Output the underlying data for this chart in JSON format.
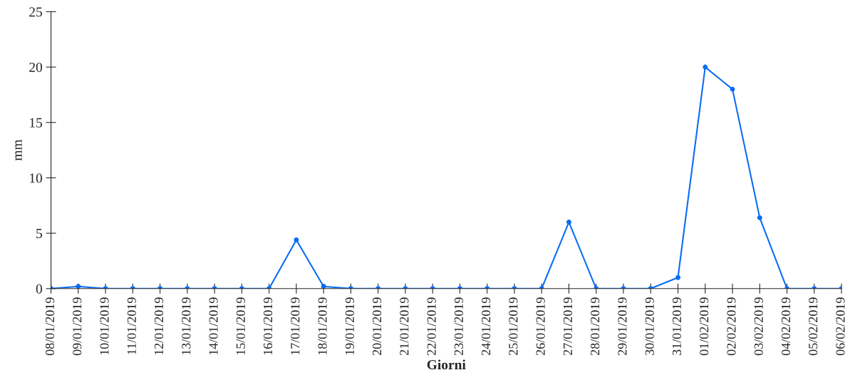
{
  "chart_data": {
    "type": "line",
    "xlabel": "Giorni",
    "ylabel": "mm",
    "categories": [
      "08/01/2019",
      "09/01/2019",
      "10/01/2019",
      "11/01/2019",
      "12/01/2019",
      "13/01/2019",
      "14/01/2019",
      "15/01/2019",
      "16/01/2019",
      "17/01/2019",
      "18/01/2019",
      "19/01/2019",
      "20/01/2019",
      "21/01/2019",
      "22/01/2019",
      "23/01/2019",
      "24/01/2019",
      "25/01/2019",
      "26/01/2019",
      "27/01/2019",
      "28/01/2019",
      "29/01/2019",
      "30/01/2019",
      "31/01/2019",
      "01/02/2019",
      "02/02/2019",
      "03/02/2019",
      "04/02/2019",
      "05/02/2019",
      "06/02/2019"
    ],
    "series": [
      {
        "color": "#0a6cf5",
        "values": [
          0,
          0.2,
          0,
          0,
          0,
          0,
          0,
          0,
          0,
          4.4,
          0.2,
          0,
          0,
          0,
          0,
          0,
          0,
          0,
          0,
          6.0,
          0,
          0,
          0,
          1.0,
          20,
          18,
          6.4,
          0,
          0,
          0
        ]
      }
    ],
    "ylim": [
      0,
      25
    ],
    "yticks": [
      0,
      5,
      10,
      15,
      20,
      25
    ],
    "grid": false,
    "legend": false,
    "marker": "circle",
    "line_style": "solid"
  }
}
